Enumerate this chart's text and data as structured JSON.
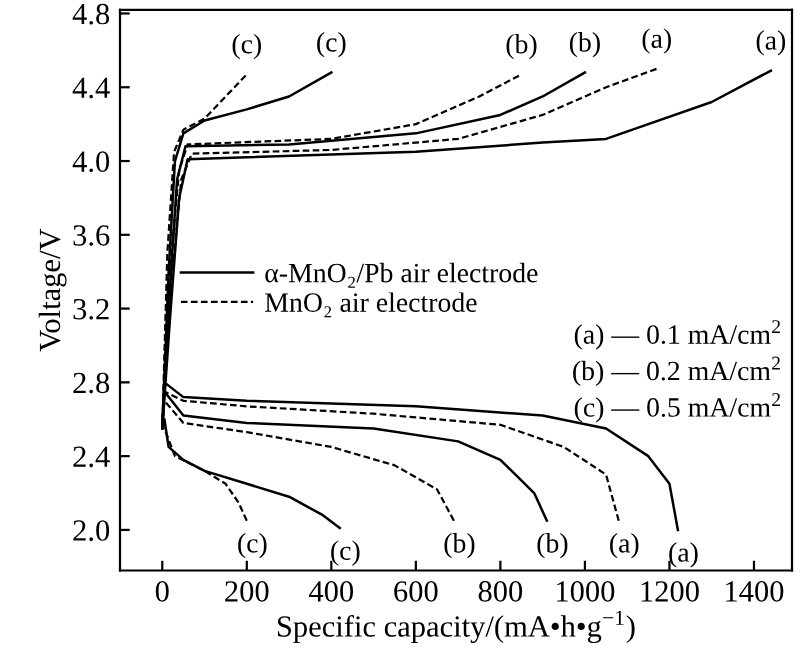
{
  "chart_data": {
    "type": "line",
    "xlabel": "Specific capacity/(mA•h•g$^{−1}$)",
    "ylabel": "Voltage/V",
    "xlim": [
      -100,
      1490
    ],
    "ylim": [
      1.78,
      4.82
    ],
    "xticks": [
      0,
      200,
      400,
      600,
      800,
      1000,
      1200,
      1400
    ],
    "yticks": [
      {
        "value": 2.0,
        "label": "2.0"
      },
      2.4,
      2.8,
      3.2,
      3.6,
      {
        "value": 4.0,
        "label": "4.0"
      },
      4.4,
      4.8
    ],
    "grid": false,
    "legend": "left",
    "marker": "none",
    "series": [
      {
        "name": "α-MnO₂/Pb air electrode",
        "color": "#000000",
        "line_style": "solid",
        "x": [
          1220,
          1200,
          1150,
          1050,
          900,
          600,
          200,
          50,
          5,
          0,
          20,
          40,
          60,
          200,
          600,
          900,
          1050,
          1150,
          1300,
          1440
        ],
        "values": [
          2.0,
          2.25,
          2.4,
          2.55,
          2.62,
          2.67,
          2.7,
          2.72,
          2.8,
          2.55,
          3.2,
          3.8,
          4.01,
          4.02,
          4.05,
          4.1,
          4.12,
          4.2,
          4.32,
          4.49
        ]
      },
      {
        "name": "MnO₂ air electrode",
        "color": "#000000",
        "line_style": "dashed",
        "x": [
          1080,
          1050,
          950,
          800,
          500,
          200,
          50,
          5,
          0,
          20,
          45,
          70,
          400,
          700,
          900,
          1050,
          1170
        ],
        "values": [
          2.05,
          2.3,
          2.45,
          2.57,
          2.63,
          2.67,
          2.7,
          2.75,
          2.55,
          3.3,
          3.9,
          4.04,
          4.06,
          4.12,
          4.25,
          4.4,
          4.5
        ]
      },
      {
        "color": "#000000",
        "line_style": "solid",
        "x": [
          910,
          880,
          800,
          700,
          500,
          200,
          50,
          5,
          0,
          18,
          35,
          55,
          300,
          600,
          800,
          900,
          1000
        ],
        "values": [
          2.05,
          2.2,
          2.38,
          2.48,
          2.55,
          2.58,
          2.62,
          2.75,
          2.55,
          3.3,
          3.9,
          4.08,
          4.09,
          4.15,
          4.25,
          4.35,
          4.48
        ]
      },
      {
        "color": "#000000",
        "line_style": "dashed",
        "x": [
          690,
          650,
          550,
          400,
          200,
          50,
          5,
          0,
          18,
          40,
          60,
          400,
          600,
          750,
          850
        ],
        "values": [
          2.05,
          2.22,
          2.35,
          2.45,
          2.53,
          2.58,
          2.7,
          2.55,
          3.4,
          3.95,
          4.09,
          4.12,
          4.2,
          4.35,
          4.47
        ]
      },
      {
        "color": "#000000",
        "line_style": "solid",
        "x": [
          420,
          380,
          300,
          200,
          100,
          50,
          15,
          5,
          0,
          15,
          30,
          50,
          100,
          200,
          300,
          400
        ],
        "values": [
          2.01,
          2.08,
          2.18,
          2.25,
          2.32,
          2.38,
          2.45,
          2.6,
          2.55,
          3.4,
          4.0,
          4.15,
          4.22,
          4.28,
          4.35,
          4.48
        ]
      },
      {
        "color": "#000000",
        "line_style": "dashed",
        "x": [
          200,
          180,
          150,
          100,
          30,
          5,
          0,
          12,
          28,
          50,
          100,
          150,
          200
        ],
        "values": [
          2.05,
          2.15,
          2.25,
          2.32,
          2.4,
          2.55,
          2.55,
          3.5,
          4.05,
          4.17,
          4.23,
          4.35,
          4.47
        ]
      }
    ],
    "annotations": [
      {
        "text": "(c)",
        "x": 200,
        "y": 4.47
      },
      {
        "text": "(c)",
        "x": 400,
        "y": 4.48
      },
      {
        "text": "(b)",
        "x": 850,
        "y": 4.47
      },
      {
        "text": "(b)",
        "x": 1000,
        "y": 4.48
      },
      {
        "text": "(a)",
        "x": 1170,
        "y": 4.5
      },
      {
        "text": "(a)",
        "x": 1440,
        "y": 4.49
      },
      {
        "text": "(c)",
        "x": 200,
        "y": 2.05
      },
      {
        "text": "(c)",
        "x": 420,
        "y": 2.01
      },
      {
        "text": "(b)",
        "x": 690,
        "y": 2.05
      },
      {
        "text": "(b)",
        "x": 910,
        "y": 2.05
      },
      {
        "text": "(a)",
        "x": 1080,
        "y": 2.05
      },
      {
        "text": "(a)",
        "x": 1220,
        "y": 2.0
      },
      "(a) — 0.1 mA/cm$^{2}$",
      "(b) — 0.2 mA/cm$^{2}$",
      "(c) — 0.5 mA/cm$^{2}$"
    ]
  }
}
